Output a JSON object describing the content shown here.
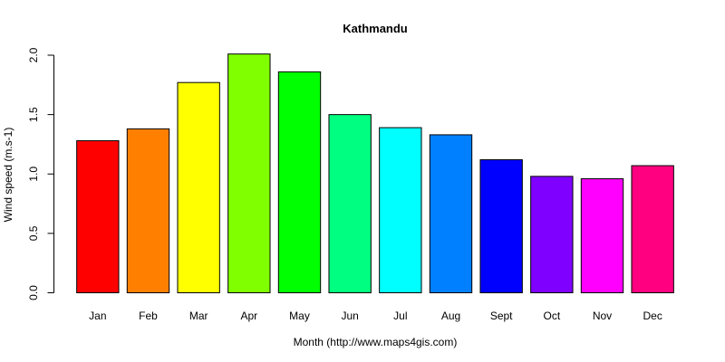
{
  "chart_data": {
    "type": "bar",
    "title": "Kathmandu",
    "xlabel": "Month (http://www.maps4gis.com)",
    "ylabel": "Wind speed (m.s-1)",
    "ylim": [
      0,
      2.0
    ],
    "y_ticks": [
      "0.0",
      "0.5",
      "1.0",
      "1.5",
      "2.0"
    ],
    "y_tick_values": [
      0,
      0.5,
      1.0,
      1.5,
      2.0
    ],
    "grid": false,
    "legend": "none",
    "categories": [
      "Jan",
      "Feb",
      "Mar",
      "Apr",
      "May",
      "Jun",
      "Jul",
      "Aug",
      "Sept",
      "Oct",
      "Nov",
      "Dec"
    ],
    "values": [
      1.28,
      1.38,
      1.77,
      2.01,
      1.86,
      1.5,
      1.39,
      1.33,
      1.12,
      0.98,
      0.96,
      1.07
    ],
    "colors": [
      "#FF0000",
      "#FF8000",
      "#FFFF00",
      "#80FF00",
      "#00FF00",
      "#00FF80",
      "#00FFFF",
      "#0080FF",
      "#0000FF",
      "#8000FF",
      "#FF00FF",
      "#FF0080"
    ]
  }
}
